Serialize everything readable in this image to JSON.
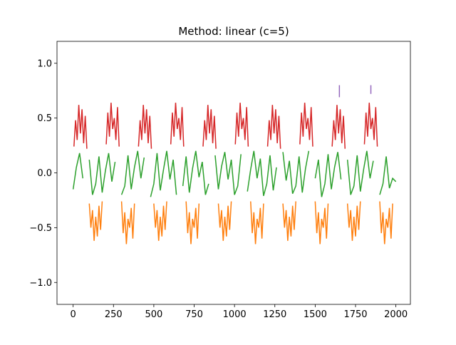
{
  "chart_data": {
    "type": "line",
    "title": "Method: linear (c=5)",
    "xlim": [
      -100,
      2090
    ],
    "ylim": [
      -1.2,
      1.2
    ],
    "xticks": [
      0,
      250,
      500,
      750,
      1000,
      1250,
      1500,
      1750,
      2000
    ],
    "yticks": [
      {
        "value": -1.0,
        "label": "−1.0"
      },
      {
        "value": -0.5,
        "label": "−0.5"
      },
      {
        "value": 0.0,
        "label": "0.0"
      },
      {
        "value": 0.5,
        "label": "0.5"
      },
      {
        "value": 1.0,
        "label": "1.0"
      }
    ],
    "series": [
      {
        "color": "#ff7f0e",
        "x": [
          100,
          110,
          120,
          130,
          140,
          150,
          160,
          170,
          180,
          200,
          300,
          310,
          320,
          330,
          340,
          350,
          360,
          370,
          380,
          400,
          500,
          510,
          520,
          530,
          540,
          550,
          560,
          570,
          580,
          600,
          700,
          710,
          720,
          730,
          740,
          750,
          760,
          770,
          780,
          800,
          900,
          910,
          920,
          930,
          940,
          950,
          960,
          970,
          980,
          1000,
          1100,
          1110,
          1120,
          1130,
          1140,
          1150,
          1160,
          1170,
          1180,
          1200,
          1300,
          1310,
          1320,
          1330,
          1340,
          1350,
          1360,
          1370,
          1380,
          1400,
          1500,
          1510,
          1520,
          1530,
          1540,
          1550,
          1560,
          1570,
          1580,
          1600,
          1700,
          1710,
          1720,
          1730,
          1740,
          1750,
          1760,
          1770,
          1780,
          1800,
          1900,
          1910,
          1920,
          1930,
          1940,
          1950,
          1960,
          1970,
          1980
        ],
        "values": [
          -0.28,
          -0.5,
          -0.34,
          -0.62,
          -0.4,
          -0.58,
          -0.3,
          -0.52,
          -0.26,
          null,
          -0.26,
          -0.55,
          -0.36,
          -0.65,
          -0.42,
          -0.5,
          -0.32,
          -0.6,
          -0.28,
          null,
          -0.28,
          -0.5,
          -0.34,
          -0.62,
          -0.4,
          -0.58,
          -0.3,
          -0.52,
          -0.26,
          null,
          -0.26,
          -0.55,
          -0.36,
          -0.65,
          -0.42,
          -0.5,
          -0.32,
          -0.6,
          -0.28,
          null,
          -0.28,
          -0.5,
          -0.34,
          -0.62,
          -0.4,
          -0.58,
          -0.3,
          -0.52,
          -0.26,
          null,
          -0.26,
          -0.55,
          -0.36,
          -0.65,
          -0.42,
          -0.5,
          -0.32,
          -0.6,
          -0.28,
          null,
          -0.28,
          -0.5,
          -0.34,
          -0.62,
          -0.4,
          -0.58,
          -0.3,
          -0.52,
          -0.26,
          null,
          -0.26,
          -0.55,
          -0.36,
          -0.65,
          -0.42,
          -0.5,
          -0.32,
          -0.6,
          -0.28,
          null,
          -0.28,
          -0.5,
          -0.34,
          -0.62,
          -0.4,
          -0.58,
          -0.3,
          -0.52,
          -0.26,
          null,
          -0.26,
          -0.55,
          -0.36,
          -0.65,
          -0.42,
          -0.5,
          -0.32,
          -0.6,
          -0.28
        ]
      },
      {
        "color": "#2ca02c",
        "x": [
          0,
          20,
          40,
          60,
          80,
          100,
          120,
          140,
          160,
          180,
          200,
          220,
          240,
          260,
          280,
          300,
          320,
          340,
          360,
          380,
          400,
          420,
          440,
          460,
          480,
          500,
          520,
          540,
          560,
          580,
          600,
          620,
          640,
          660,
          680,
          700,
          720,
          740,
          760,
          780,
          800,
          820,
          840,
          860,
          880,
          900,
          920,
          940,
          960,
          980,
          1000,
          1020,
          1040,
          1060,
          1080,
          1100,
          1120,
          1140,
          1160,
          1180,
          1200,
          1220,
          1240,
          1260,
          1280,
          1300,
          1320,
          1340,
          1360,
          1380,
          1400,
          1420,
          1440,
          1460,
          1480,
          1500,
          1520,
          1540,
          1560,
          1580,
          1600,
          1620,
          1640,
          1660,
          1680,
          1700,
          1720,
          1740,
          1760,
          1780,
          1800,
          1820,
          1840,
          1860,
          1880,
          1900,
          1920,
          1940,
          1960,
          1980,
          2000
        ],
        "values": [
          -0.15,
          0.05,
          0.18,
          -0.05,
          null,
          0.12,
          -0.2,
          -0.1,
          0.15,
          -0.18,
          0.02,
          0.18,
          -0.08,
          0.1,
          null,
          -0.2,
          -0.12,
          0.16,
          -0.15,
          0.05,
          0.2,
          -0.05,
          0.14,
          null,
          -0.22,
          -0.1,
          0.18,
          -0.16,
          0.03,
          0.2,
          -0.06,
          0.12,
          -0.2,
          null,
          -0.12,
          0.15,
          -0.18,
          0.04,
          0.2,
          -0.04,
          0.1,
          -0.2,
          -0.1,
          null,
          0.16,
          -0.15,
          0.06,
          0.19,
          -0.06,
          0.12,
          -0.2,
          -0.12,
          0.17,
          null,
          -0.17,
          0.03,
          0.2,
          -0.05,
          0.13,
          -0.21,
          -0.1,
          0.16,
          -0.16,
          0.05,
          null,
          0.19,
          -0.07,
          0.11,
          -0.19,
          -0.12,
          0.15,
          -0.18,
          0.04,
          0.2,
          null,
          -0.05,
          0.12,
          -0.22,
          -0.1,
          0.17,
          -0.15,
          0.05,
          0.19,
          -0.06,
          null,
          0.12,
          -0.2,
          -0.12,
          0.16,
          -0.17,
          0.03,
          0.2,
          -0.05,
          0.11,
          null,
          -0.2,
          -0.1,
          0.15,
          -0.14,
          -0.05,
          -0.08
        ]
      },
      {
        "color": "#d62728",
        "x": [
          5,
          15,
          25,
          35,
          45,
          55,
          65,
          75,
          85,
          105,
          205,
          215,
          225,
          235,
          245,
          255,
          265,
          275,
          285,
          305,
          405,
          415,
          425,
          435,
          445,
          455,
          465,
          475,
          485,
          505,
          605,
          615,
          625,
          635,
          645,
          655,
          665,
          675,
          685,
          705,
          805,
          815,
          825,
          835,
          845,
          855,
          865,
          875,
          885,
          905,
          1005,
          1015,
          1025,
          1035,
          1045,
          1055,
          1065,
          1075,
          1085,
          1105,
          1205,
          1215,
          1225,
          1235,
          1245,
          1255,
          1265,
          1275,
          1285,
          1305,
          1405,
          1415,
          1425,
          1435,
          1445,
          1455,
          1465,
          1475,
          1485,
          1505,
          1605,
          1615,
          1625,
          1635,
          1645,
          1655,
          1665,
          1675,
          1685,
          1705,
          1805,
          1815,
          1825,
          1835,
          1845,
          1855,
          1865,
          1875,
          1885
        ],
        "values": [
          0.24,
          0.48,
          0.3,
          0.62,
          0.36,
          0.58,
          0.27,
          0.52,
          0.22,
          null,
          0.26,
          0.55,
          0.33,
          0.64,
          0.4,
          0.5,
          0.3,
          0.6,
          0.24,
          null,
          0.24,
          0.48,
          0.3,
          0.62,
          0.36,
          0.58,
          0.27,
          0.52,
          0.22,
          null,
          0.26,
          0.55,
          0.33,
          0.64,
          0.4,
          0.5,
          0.3,
          0.6,
          0.24,
          null,
          0.24,
          0.48,
          0.3,
          0.62,
          0.36,
          0.58,
          0.27,
          0.52,
          0.22,
          null,
          0.26,
          0.55,
          0.33,
          0.64,
          0.4,
          0.5,
          0.3,
          0.6,
          0.24,
          null,
          0.24,
          0.48,
          0.3,
          0.62,
          0.36,
          0.58,
          0.27,
          0.52,
          0.22,
          null,
          0.26,
          0.55,
          0.33,
          0.64,
          0.4,
          0.5,
          0.3,
          0.6,
          0.24,
          null,
          0.24,
          0.48,
          0.3,
          0.62,
          0.36,
          0.58,
          0.27,
          0.52,
          0.22,
          null,
          0.26,
          0.55,
          0.33,
          0.64,
          0.4,
          0.5,
          0.3,
          0.6,
          0.24
        ]
      },
      {
        "color": "#9467bd",
        "x": [
          1650,
          1650,
          1700,
          1845,
          1845
        ],
        "values": [
          0.69,
          0.8,
          null,
          0.72,
          0.8
        ]
      }
    ]
  }
}
